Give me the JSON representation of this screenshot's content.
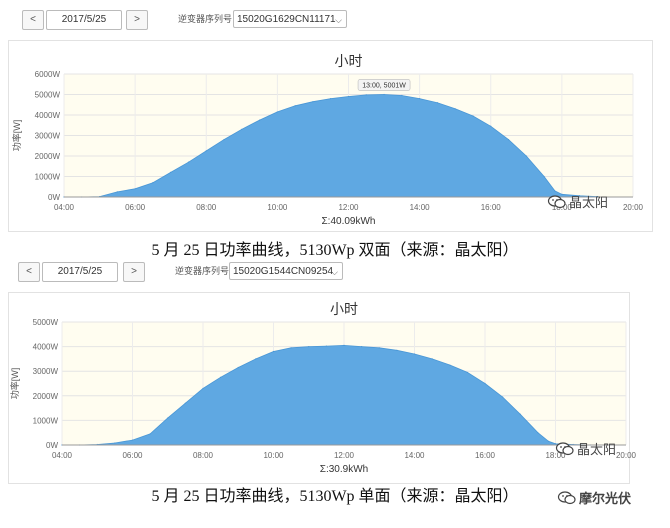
{
  "top_panel": {
    "prev_label": "<",
    "next_label": ">",
    "date": "2017/5/25",
    "serial_label": "逆变器序列号",
    "serial_value": "15020G1629CN11171",
    "caption": "5 月 25 日功率曲线，5130Wp 双面（来源：晶太阳）",
    "watermark": "晶太阳"
  },
  "bottom_panel": {
    "prev_label": "<",
    "next_label": ">",
    "date": "2017/5/25",
    "serial_label": "逆变器序列号",
    "serial_value": "15020G1544CN09254",
    "caption": "5 月 25 日功率曲线，5130Wp 单面（来源：晶太阳）",
    "watermark": "晶太阳",
    "watermark2": "摩尔光伏"
  },
  "chart_data": [
    {
      "type": "area",
      "title": "小时",
      "ylabel": "功率[W]",
      "xlabel": "Σ:40.09kWh",
      "xticks": [
        "04:00",
        "06:00",
        "08:00",
        "10:00",
        "12:00",
        "14:00",
        "16:00",
        "18:00",
        "20:00"
      ],
      "yticks": [
        "0W",
        "1000W",
        "2000W",
        "3000W",
        "4000W",
        "5000W",
        "6000W"
      ],
      "xlim": [
        4,
        20
      ],
      "ylim": [
        0,
        6000
      ],
      "grid": true,
      "color": "#5fa8e2",
      "tooltip": "13:00, 5001W",
      "x": [
        4,
        4.5,
        5,
        5.5,
        6,
        6.5,
        7,
        7.5,
        8,
        8.5,
        9,
        9.5,
        10,
        10.5,
        11,
        11.5,
        12,
        12.5,
        13,
        13.5,
        14,
        14.5,
        15,
        15.5,
        16,
        16.5,
        17,
        17.5,
        17.8,
        18,
        18.5,
        19
      ],
      "values": [
        0,
        0,
        20,
        250,
        400,
        700,
        1200,
        1700,
        2250,
        2800,
        3300,
        3750,
        4150,
        4450,
        4650,
        4800,
        4900,
        4980,
        5001,
        4950,
        4800,
        4600,
        4300,
        3950,
        3450,
        2800,
        2000,
        1000,
        300,
        130,
        60,
        20
      ]
    },
    {
      "type": "area",
      "title": "小时",
      "ylabel": "功率[W]",
      "xlabel": "Σ:30.9kWh",
      "xticks": [
        "04:00",
        "06:00",
        "08:00",
        "10:00",
        "12:00",
        "14:00",
        "16:00",
        "18:00",
        "20:00"
      ],
      "yticks": [
        "0W",
        "1000W",
        "2000W",
        "3000W",
        "4000W",
        "5000W"
      ],
      "xlim": [
        4,
        20
      ],
      "ylim": [
        0,
        5000
      ],
      "grid": true,
      "color": "#5fa8e2",
      "x": [
        4,
        4.5,
        5,
        5.5,
        6,
        6.5,
        7,
        7.5,
        8,
        8.5,
        9,
        9.5,
        10,
        10.5,
        11,
        11.5,
        12,
        12.5,
        13,
        13.5,
        14,
        14.5,
        15,
        15.5,
        16,
        16.5,
        17,
        17.5,
        17.8,
        18,
        18.5,
        19
      ],
      "values": [
        0,
        0,
        20,
        80,
        200,
        450,
        1100,
        1700,
        2300,
        2750,
        3150,
        3500,
        3800,
        3950,
        4000,
        4020,
        4050,
        4000,
        3950,
        3850,
        3700,
        3500,
        3250,
        2950,
        2500,
        1950,
        1250,
        500,
        150,
        50,
        20,
        0
      ]
    }
  ]
}
